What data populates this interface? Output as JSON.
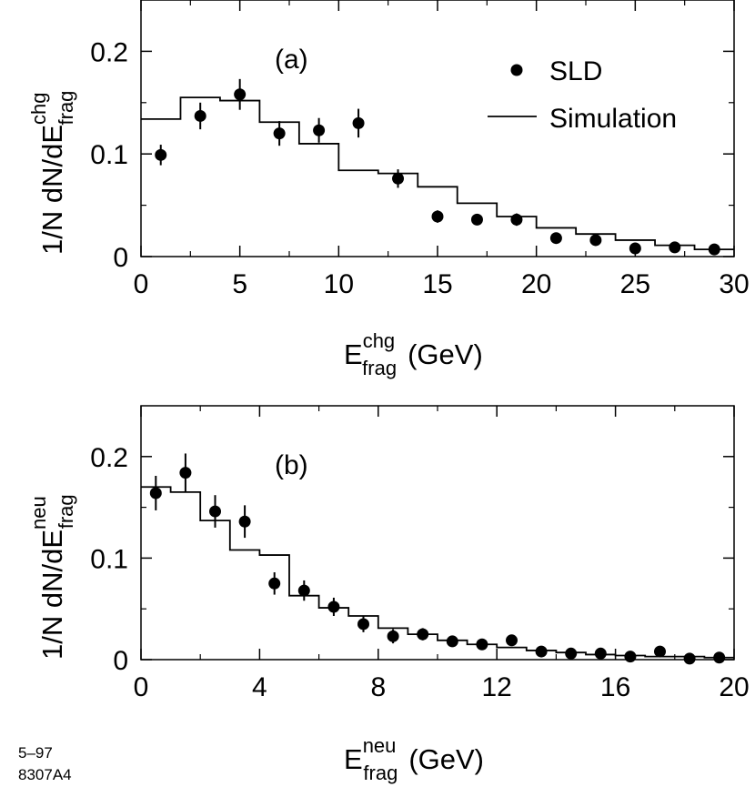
{
  "chart_data": [
    {
      "type": "scatter",
      "panel_label": "(a)",
      "xlabel": {
        "main": "E",
        "sup": "chg",
        "sub": "frag",
        "unit": "(GeV)"
      },
      "ylabel": {
        "main": "1/N dN/dE",
        "sup": "chg",
        "sub": "frag"
      },
      "xlim": [
        0,
        30
      ],
      "ylim": [
        0,
        0.25
      ],
      "xticks": [
        0,
        5,
        10,
        15,
        20,
        25,
        30
      ],
      "xtick_labels": [
        "0",
        "5",
        "10",
        "15",
        "20",
        "25",
        "30"
      ],
      "yticks": [
        0,
        0.1,
        0.2
      ],
      "ytick_labels": [
        "0",
        "0.1",
        "0.2"
      ],
      "legend": {
        "position": "top-right",
        "entries": [
          {
            "label": "SLD",
            "marker": "dot"
          },
          {
            "label": "Simulation",
            "marker": "line"
          }
        ]
      },
      "series": [
        {
          "name": "SLD",
          "kind": "points",
          "x": [
            1,
            3,
            5,
            7,
            9,
            11,
            13,
            15,
            17,
            19,
            21,
            23,
            25,
            27,
            29
          ],
          "y": [
            0.099,
            0.137,
            0.158,
            0.12,
            0.123,
            0.13,
            0.076,
            0.039,
            0.036,
            0.036,
            0.018,
            0.016,
            0.008,
            0.009,
            0.007
          ],
          "err": [
            0.01,
            0.013,
            0.015,
            0.012,
            0.012,
            0.014,
            0.009,
            0.006,
            0.005,
            0.006,
            0.004,
            0.004,
            0.003,
            0.003,
            0.003
          ]
        },
        {
          "name": "Simulation",
          "kind": "step",
          "edges": [
            0,
            2,
            4,
            6,
            8,
            10,
            12,
            14,
            16,
            18,
            20,
            22,
            24,
            26,
            28,
            30
          ],
          "values": [
            0.134,
            0.155,
            0.152,
            0.131,
            0.11,
            0.084,
            0.081,
            0.068,
            0.052,
            0.039,
            0.028,
            0.022,
            0.016,
            0.011,
            0.007
          ]
        }
      ]
    },
    {
      "type": "scatter",
      "panel_label": "(b)",
      "xlabel": {
        "main": "E",
        "sup": "neu",
        "sub": "frag",
        "unit": "(GeV)"
      },
      "ylabel": {
        "main": "1/N dN/dE",
        "sup": "neu",
        "sub": "frag"
      },
      "xlim": [
        0,
        20
      ],
      "ylim": [
        0,
        0.25
      ],
      "xticks": [
        0,
        4,
        8,
        12,
        16,
        20
      ],
      "xtick_labels": [
        "0",
        "4",
        "8",
        "12",
        "16",
        "20"
      ],
      "yticks": [
        0,
        0.1,
        0.2
      ],
      "ytick_labels": [
        "0",
        "0.1",
        "0.2"
      ],
      "series": [
        {
          "name": "SLD",
          "kind": "points",
          "x": [
            0.5,
            1.5,
            2.5,
            3.5,
            4.5,
            5.5,
            6.5,
            7.5,
            8.5,
            9.5,
            10.5,
            11.5,
            12.5,
            13.5,
            14.5,
            15.5,
            16.5,
            17.5,
            18.5,
            19.5
          ],
          "y": [
            0.164,
            0.184,
            0.146,
            0.136,
            0.075,
            0.068,
            0.052,
            0.035,
            0.023,
            0.025,
            0.018,
            0.015,
            0.019,
            0.008,
            0.006,
            0.006,
            0.003,
            0.008,
            0.001,
            0.002
          ],
          "err": [
            0.017,
            0.019,
            0.016,
            0.016,
            0.011,
            0.01,
            0.009,
            0.008,
            0.007,
            0.006,
            0.004,
            0.004,
            0.004,
            0.003,
            0.003,
            0.003,
            0.002,
            0.003,
            0.002,
            0.002
          ]
        },
        {
          "name": "Simulation",
          "kind": "step",
          "edges": [
            0,
            1,
            2,
            3,
            4,
            5,
            6,
            7,
            8,
            9,
            10,
            11,
            12,
            13,
            14,
            15,
            16,
            17,
            18,
            19,
            20
          ],
          "values": [
            0.17,
            0.165,
            0.137,
            0.108,
            0.103,
            0.063,
            0.051,
            0.043,
            0.031,
            0.025,
            0.019,
            0.015,
            0.012,
            0.009,
            0.007,
            0.005,
            0.004,
            0.003,
            0.003,
            0.002
          ]
        }
      ]
    }
  ],
  "footnote": {
    "line1": "5–97",
    "line2": "8307A4"
  }
}
